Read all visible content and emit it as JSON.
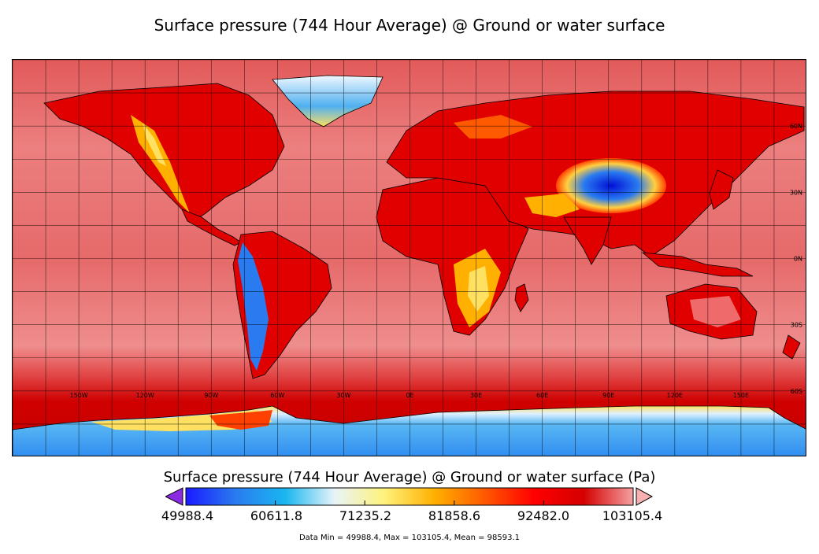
{
  "title": "Surface pressure (744 Hour Average) @ Ground or water surface",
  "colorbar": {
    "title": "Surface pressure (744 Hour Average) @ Ground or water surface (Pa)",
    "labels": [
      "49988.4",
      "60611.8",
      "71235.2",
      "81858.6",
      "92482.0",
      "103105.4"
    ],
    "colors": [
      "#7b2cf0",
      "#1a1aff",
      "#2a7bf0",
      "#19b6f0",
      "#e8f4f8",
      "#fff27a",
      "#ffb000",
      "#ff5a00",
      "#ff0000",
      "#d40000",
      "#f4a0a0"
    ]
  },
  "stats": "Data Min = 49988.4, Max = 103105.4, Mean = 98593.1",
  "map": {
    "lon_labels": [
      "150W",
      "120W",
      "90W",
      "60W",
      "30W",
      "0E",
      "30E",
      "60E",
      "90E",
      "120E",
      "150E"
    ],
    "lat_labels": [
      "60N",
      "30N",
      "0N",
      "30S",
      "60S"
    ],
    "colors": {
      "ocean": "#e46060",
      "ocean_light": "#ef8a8a",
      "southern_ocean": "#d10000",
      "land_low": "#e00000",
      "land_mid": "#ff6a00",
      "land_high": "#ffd040",
      "ice": "#3aa0f0",
      "plateau": "#1020e0"
    }
  }
}
